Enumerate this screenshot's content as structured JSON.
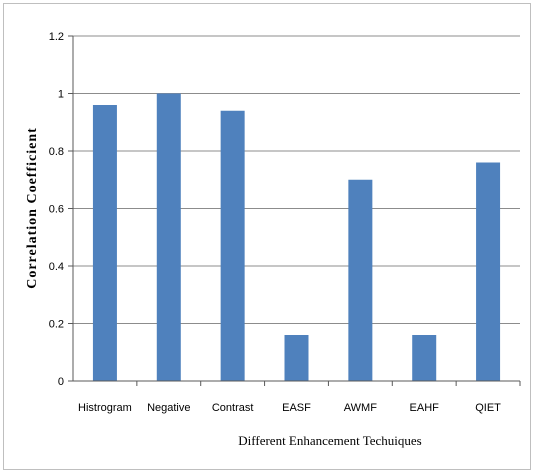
{
  "chart_data": {
    "type": "bar",
    "title": "",
    "xlabel": "Different Enhancement Techuiques",
    "ylabel": "Correlation Coefficient",
    "categories": [
      "Histrogram",
      "Negative",
      "Contrast",
      "EASF",
      "AWMF",
      "EAHF",
      "QIET"
    ],
    "values": [
      0.96,
      1.0,
      0.94,
      0.16,
      0.7,
      0.16,
      0.76
    ],
    "ylim": [
      0,
      1.2
    ],
    "yticks": [
      "0",
      "0.2",
      "0.4",
      "0.6",
      "0.8",
      "1",
      "1.2"
    ],
    "grid": true,
    "legend": "none",
    "bar_color": "#4f81bd",
    "grid_color": "#8c8c8c"
  }
}
